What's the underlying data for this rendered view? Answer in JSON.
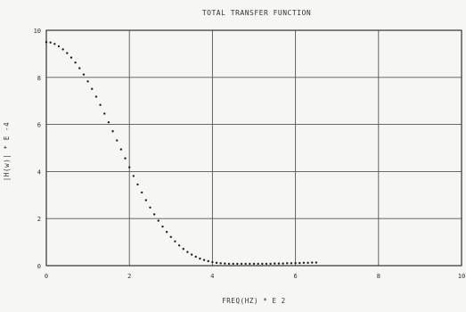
{
  "chart_data": {
    "type": "scatter",
    "title": "TOTAL TRANSFER FUNCTION",
    "xlabel": "FREQ(HZ) * E  2",
    "ylabel": "|H(w)| * E -4",
    "xlim": [
      0,
      10
    ],
    "ylim": [
      0,
      10
    ],
    "x_ticks": [
      0,
      2,
      4,
      6,
      8,
      10
    ],
    "y_ticks": [
      0,
      2,
      4,
      6,
      8,
      10
    ],
    "x_tick_labels": [
      "0",
      "2",
      "4",
      "6",
      "8",
      "10"
    ],
    "y_tick_labels": [
      "0",
      "2",
      "4",
      "6",
      "8",
      "10"
    ],
    "grid": true,
    "series": [
      {
        "color": "#222222",
        "marker": "dot",
        "x": [
          0.0,
          0.1,
          0.2,
          0.3,
          0.4,
          0.5,
          0.6,
          0.7,
          0.8,
          0.9,
          1.0,
          1.1,
          1.2,
          1.3,
          1.4,
          1.5,
          1.6,
          1.7,
          1.8,
          1.9,
          2.0,
          2.1,
          2.2,
          2.3,
          2.4,
          2.5,
          2.6,
          2.7,
          2.8,
          2.9,
          3.0,
          3.1,
          3.2,
          3.3,
          3.4,
          3.5,
          3.6,
          3.7,
          3.8,
          3.9,
          4.0,
          4.1,
          4.2,
          4.3,
          4.4,
          4.5,
          4.6,
          4.7,
          4.8,
          4.9,
          5.0,
          5.1,
          5.2,
          5.3,
          5.4,
          5.5,
          5.6,
          5.7,
          5.8,
          5.9,
          6.0,
          6.1,
          6.2,
          6.3,
          6.4,
          6.5
        ],
        "values": [
          9.5,
          9.48,
          9.42,
          9.32,
          9.19,
          9.03,
          8.84,
          8.63,
          8.39,
          8.12,
          7.83,
          7.51,
          7.18,
          6.83,
          6.46,
          6.09,
          5.71,
          5.32,
          4.94,
          4.56,
          4.18,
          3.81,
          3.45,
          3.11,
          2.78,
          2.47,
          2.18,
          1.91,
          1.66,
          1.43,
          1.22,
          1.03,
          0.86,
          0.71,
          0.58,
          0.47,
          0.38,
          0.3,
          0.24,
          0.19,
          0.15,
          0.12,
          0.1,
          0.09,
          0.08,
          0.08,
          0.08,
          0.08,
          0.08,
          0.08,
          0.08,
          0.08,
          0.08,
          0.08,
          0.08,
          0.09,
          0.09,
          0.09,
          0.1,
          0.1,
          0.11,
          0.11,
          0.12,
          0.12,
          0.13,
          0.13
        ]
      }
    ]
  }
}
